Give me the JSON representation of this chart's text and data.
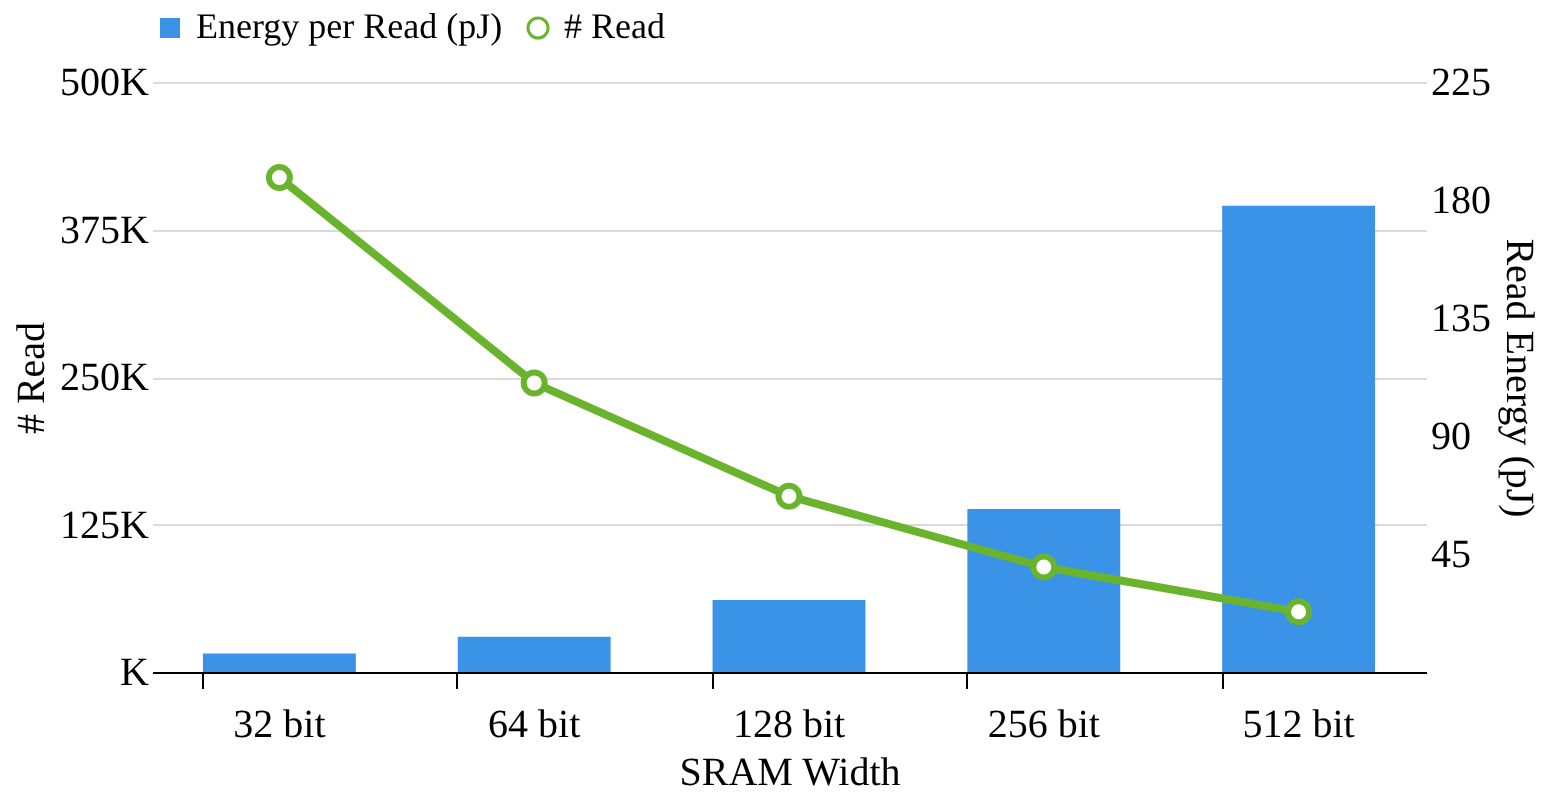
{
  "chart_data": {
    "type": "bar",
    "xlabel": "SRAM Width",
    "ylabel": "# Read",
    "y2label": "Read Energy (pJ)",
    "categories": [
      "32 bit",
      "64 bit",
      "128 bit",
      "256 bit",
      "512 bit"
    ],
    "series": [
      {
        "name": "Energy per Read (pJ)",
        "axis": "y2",
        "color": "#3a93e6",
        "values": [
          7.1,
          13.4,
          27.5,
          62.2,
          177.8
        ]
      },
      {
        "name": "# Read",
        "type": "line",
        "axis": "y",
        "color": "#6ab42d",
        "marker": "circle",
        "values": [
          419000,
          245000,
          149000,
          89000,
          51000
        ]
      }
    ],
    "ylim": [
      0,
      500000
    ],
    "yticks": [
      {
        "value": 0,
        "label": "K"
      },
      {
        "value": 125000,
        "label": "125K"
      },
      {
        "value": 250000,
        "label": "250K"
      },
      {
        "value": 375000,
        "label": "375K"
      },
      {
        "value": 500000,
        "label": "500K"
      }
    ],
    "y2lim": [
      0,
      225
    ],
    "y2ticks": [
      45,
      90,
      135,
      180,
      225
    ],
    "grid": "y",
    "legend": "top"
  }
}
